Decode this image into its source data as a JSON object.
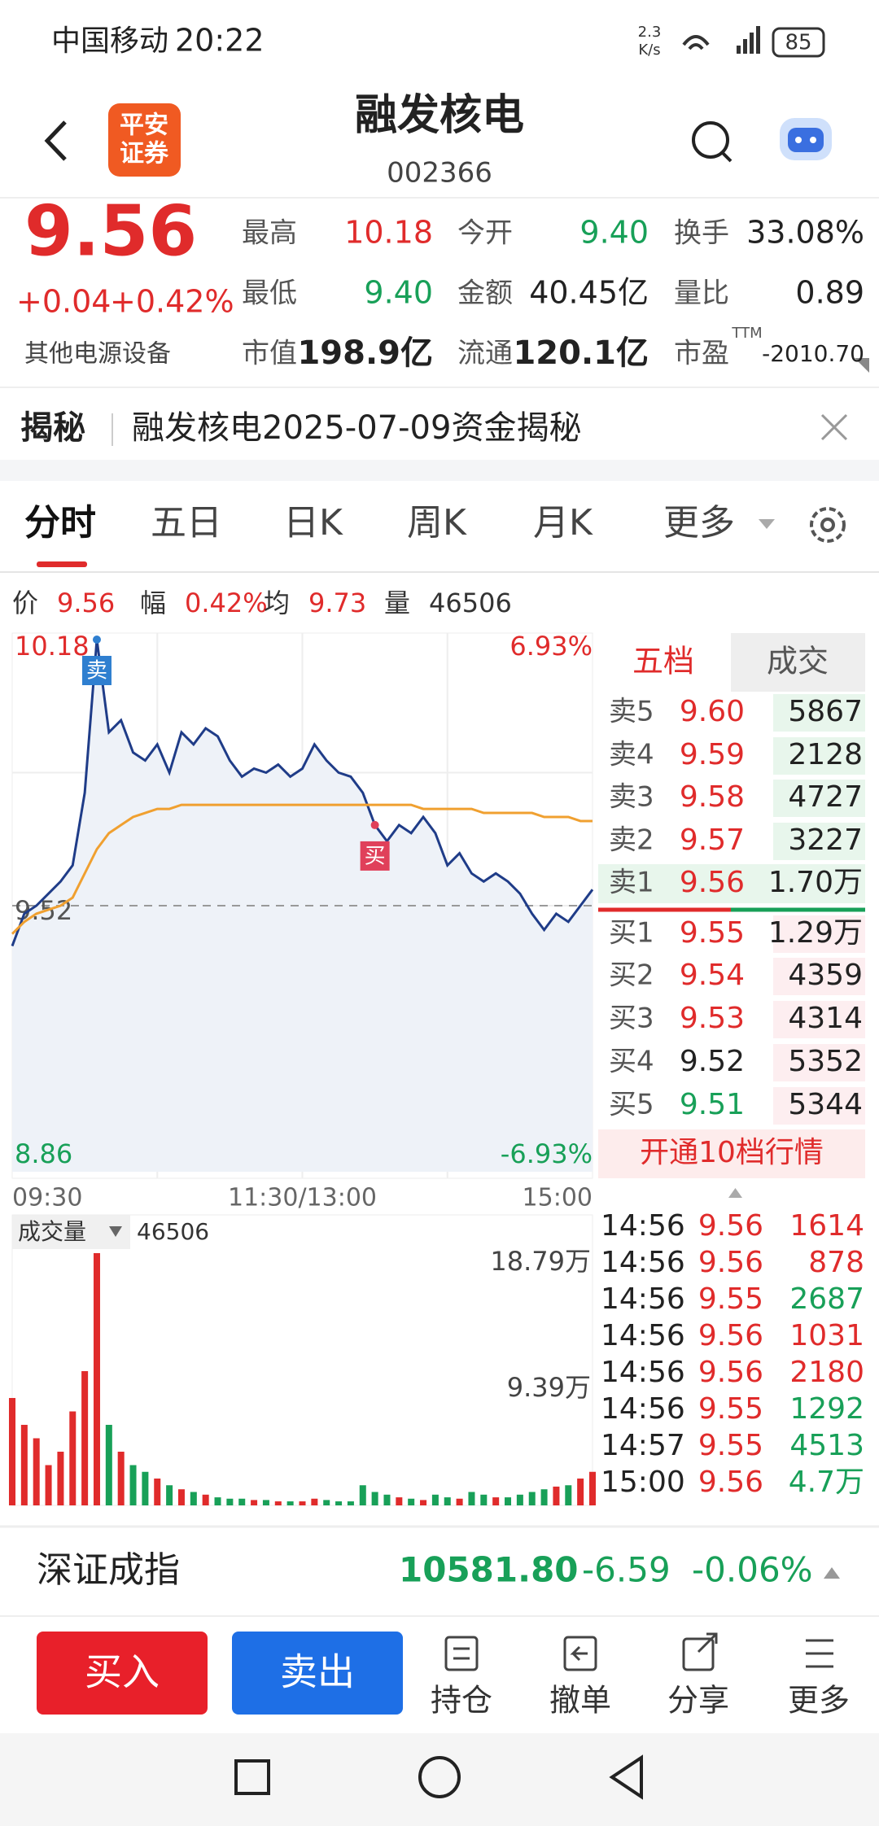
{
  "status_bar": {
    "carrier": "中国移动",
    "time": "20:22",
    "speed_value": "2.3",
    "speed_unit": "K/s",
    "battery": "85"
  },
  "header": {
    "logo": [
      "平安",
      "证券"
    ],
    "title": "融发核电",
    "code": "002366"
  },
  "quote": {
    "price": "9.56",
    "change": "+0.04",
    "change_pct": "+0.42%",
    "industry": "其他电源设备",
    "ttm": "TTM",
    "stats": [
      {
        "label": "最高",
        "value": "10.18",
        "color": "#e02b2b"
      },
      {
        "label": "今开",
        "value": "9.40",
        "color": "#18a058"
      },
      {
        "label": "换手",
        "value": "33.08%",
        "color": "#222"
      },
      {
        "label": "最低",
        "value": "9.40",
        "color": "#18a058"
      },
      {
        "label": "金额",
        "value": "40.45亿",
        "color": "#222"
      },
      {
        "label": "量比",
        "value": "0.89",
        "color": "#222"
      },
      {
        "label": "市值",
        "value": "198.9亿",
        "color": "#222"
      },
      {
        "label": "流通",
        "value": "120.1亿",
        "color": "#222"
      },
      {
        "label": "市盈",
        "value": "-2010.70",
        "color": "#222"
      }
    ]
  },
  "reveal": {
    "tag": "揭秘",
    "text": "融发核电2025-07-09资金揭秘"
  },
  "tabs": [
    "分时",
    "五日",
    "日K",
    "周K",
    "月K",
    "更多"
  ],
  "info": [
    {
      "label": "价",
      "value": "9.56"
    },
    {
      "label": "幅",
      "value": "0.42%"
    },
    {
      "label": "均",
      "value": "9.73"
    },
    {
      "label": "量",
      "value": "46506"
    }
  ],
  "chart_data": [
    {
      "type": "line",
      "x": [
        0,
        5,
        10,
        15,
        20,
        25,
        30,
        35,
        40,
        45,
        50,
        55,
        60,
        65,
        70,
        75,
        80,
        85,
        90,
        95,
        100,
        105,
        110,
        115,
        120,
        125,
        130,
        135,
        140,
        145,
        150,
        155,
        160,
        165,
        170,
        175,
        180,
        185,
        190,
        195,
        200,
        205,
        210,
        215,
        220,
        225,
        230,
        235,
        240
      ],
      "series": [
        {
          "color": "#1f3c88",
          "values": [
            9.42,
            9.5,
            9.52,
            9.55,
            9.58,
            9.62,
            9.8,
            10.18,
            9.95,
            9.98,
            9.9,
            9.88,
            9.92,
            9.85,
            9.95,
            9.92,
            9.96,
            9.94,
            9.88,
            9.84,
            9.86,
            9.85,
            9.87,
            9.84,
            9.86,
            9.92,
            9.88,
            9.85,
            9.84,
            9.8,
            9.72,
            9.68,
            9.72,
            9.7,
            9.74,
            9.7,
            9.62,
            9.65,
            9.6,
            9.58,
            9.6,
            9.58,
            9.55,
            9.5,
            9.46,
            9.5,
            9.48,
            9.52,
            9.56
          ]
        },
        {
          "color": "#f0a030",
          "values": [
            9.45,
            9.48,
            9.5,
            9.51,
            9.52,
            9.54,
            9.6,
            9.66,
            9.7,
            9.72,
            9.74,
            9.75,
            9.76,
            9.76,
            9.77,
            9.77,
            9.77,
            9.77,
            9.77,
            9.77,
            9.77,
            9.77,
            9.77,
            9.77,
            9.77,
            9.77,
            9.77,
            9.77,
            9.77,
            9.77,
            9.77,
            9.77,
            9.77,
            9.77,
            9.76,
            9.76,
            9.76,
            9.76,
            9.76,
            9.75,
            9.75,
            9.75,
            9.75,
            9.75,
            9.74,
            9.74,
            9.74,
            9.73,
            9.73
          ]
        }
      ],
      "xlim": [
        0,
        240
      ],
      "xticks": [
        {
          "value": 0,
          "label": "09:30"
        },
        {
          "value": 120,
          "label": "11:30/13:00"
        },
        {
          "value": 240,
          "label": "15:00"
        }
      ],
      "ylim": [
        8.86,
        10.18
      ],
      "yticks": [
        8.86,
        9.52,
        10.18
      ],
      "y2lim": [
        -6.93,
        6.93
      ],
      "y2ticks": [
        {
          "value": -6.93,
          "label": "-6.93%"
        },
        {
          "value": 6.93,
          "label": "6.93%"
        }
      ],
      "grid": true,
      "annotations": [
        {
          "label": "卖",
          "x": 35,
          "y": 10.18,
          "color": "#2f7fd0"
        },
        {
          "label": "买",
          "x": 150,
          "y": 9.72,
          "color": "#e0405a"
        }
      ]
    },
    {
      "type": "bar",
      "title": "成交量",
      "value_label": "46506",
      "x": [
        0,
        5,
        10,
        15,
        20,
        25,
        30,
        35,
        40,
        45,
        50,
        55,
        60,
        65,
        70,
        75,
        80,
        85,
        90,
        95,
        100,
        105,
        110,
        115,
        120,
        125,
        130,
        135,
        140,
        145,
        150,
        155,
        160,
        165,
        170,
        175,
        180,
        185,
        190,
        195,
        200,
        205,
        210,
        215,
        220,
        225,
        230,
        235,
        240
      ],
      "values": [
        80000,
        60000,
        50000,
        30000,
        40000,
        70000,
        100000,
        187900,
        60000,
        40000,
        30000,
        25000,
        20000,
        15000,
        12000,
        10000,
        8000,
        6000,
        5000,
        5000,
        4000,
        4000,
        3000,
        3000,
        3000,
        5000,
        4000,
        3000,
        3000,
        15000,
        10000,
        8000,
        6000,
        5000,
        4000,
        8000,
        6000,
        5000,
        10000,
        8000,
        6000,
        6000,
        8000,
        10000,
        12000,
        14000,
        15000,
        20000,
        25000
      ],
      "xlim": [
        0,
        240
      ],
      "ylim": [
        0,
        187900
      ],
      "yticks": [
        {
          "value": 93900,
          "label": "9.39万"
        },
        {
          "value": 187900,
          "label": "18.79万"
        }
      ],
      "up_color": "#e02b2b",
      "down_color": "#18a058"
    }
  ],
  "order_book": {
    "tabs": [
      "五档",
      "成交"
    ],
    "asks": [
      {
        "label": "卖5",
        "price": "9.60",
        "volume": "5867",
        "color": "#e02b2b"
      },
      {
        "label": "卖4",
        "price": "9.59",
        "volume": "2128",
        "color": "#e02b2b"
      },
      {
        "label": "卖3",
        "price": "9.58",
        "volume": "4727",
        "color": "#e02b2b"
      },
      {
        "label": "卖2",
        "price": "9.57",
        "volume": "3227",
        "color": "#e02b2b"
      },
      {
        "label": "卖1",
        "price": "9.56",
        "volume": "1.70万",
        "color": "#e02b2b"
      }
    ],
    "bids": [
      {
        "label": "买1",
        "price": "9.55",
        "volume": "1.29万",
        "color": "#e02b2b"
      },
      {
        "label": "买2",
        "price": "9.54",
        "volume": "4359",
        "color": "#e02b2b"
      },
      {
        "label": "买3",
        "price": "9.53",
        "volume": "4314",
        "color": "#e02b2b"
      },
      {
        "label": "买4",
        "price": "9.52",
        "volume": "5352",
        "color": "#222"
      },
      {
        "label": "买5",
        "price": "9.51",
        "volume": "5344",
        "color": "#18a058"
      }
    ],
    "upgrade": "开通10档行情"
  },
  "trades": [
    {
      "time": "14:56",
      "price": "9.56",
      "volume": "1614",
      "color": "#e02b2b"
    },
    {
      "time": "14:56",
      "price": "9.56",
      "volume": "878",
      "color": "#e02b2b"
    },
    {
      "time": "14:56",
      "price": "9.55",
      "volume": "2687",
      "color": "#18a058"
    },
    {
      "time": "14:56",
      "price": "9.56",
      "volume": "1031",
      "color": "#e02b2b"
    },
    {
      "time": "14:56",
      "price": "9.56",
      "volume": "2180",
      "color": "#e02b2b"
    },
    {
      "time": "14:56",
      "price": "9.55",
      "volume": "1292",
      "color": "#18a058"
    },
    {
      "time": "14:57",
      "price": "9.55",
      "volume": "4513",
      "color": "#18a058"
    },
    {
      "time": "15:00",
      "price": "9.56",
      "volume": "4.7万",
      "color": "#18a058"
    }
  ],
  "index_bar": {
    "name": "深证成指",
    "value": "10581.80",
    "change": "-6.59",
    "change_pct": "-0.06%"
  },
  "actions": {
    "buy": "买入",
    "sell": "卖出",
    "tools": [
      "持仓",
      "撤单",
      "分享",
      "更多"
    ]
  }
}
